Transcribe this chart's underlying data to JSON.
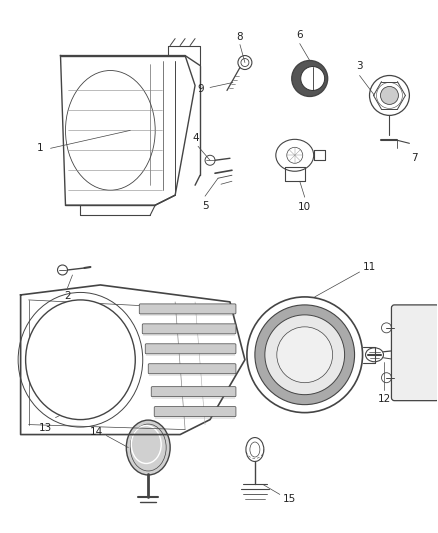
{
  "background_color": "#ffffff",
  "figsize": [
    4.38,
    5.33
  ],
  "dpi": 100,
  "line_color": "#444444",
  "label_color": "#222222",
  "label_fontsize": 7.5
}
